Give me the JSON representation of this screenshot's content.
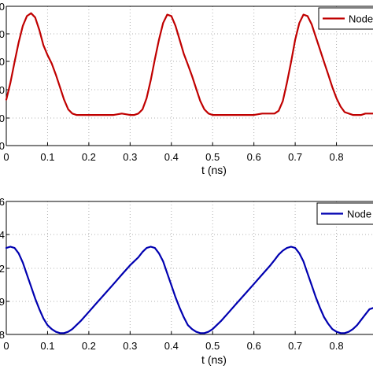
{
  "chart_data": [
    {
      "type": "line",
      "xlabel": "t (ns)",
      "ylabel": "",
      "xlim": [
        0,
        0.9
      ],
      "ylim": [
        0,
        1
      ],
      "xticks": [
        "0",
        "0.1",
        "0.2",
        "0.3",
        "0.4",
        "0.5",
        "0.6",
        "0.7",
        "0.8"
      ],
      "yticks": [
        "0",
        "0",
        "0",
        "0",
        "0",
        "0"
      ],
      "grid": true,
      "legend": "top-right",
      "series": [
        {
          "name": "Node",
          "color": "#c00000",
          "x": [
            0,
            0.01,
            0.02,
            0.03,
            0.04,
            0.05,
            0.06,
            0.07,
            0.08,
            0.09,
            0.1,
            0.11,
            0.12,
            0.13,
            0.14,
            0.15,
            0.16,
            0.17,
            0.18,
            0.19,
            0.2,
            0.22,
            0.24,
            0.26,
            0.28,
            0.3,
            0.31,
            0.32,
            0.33,
            0.34,
            0.35,
            0.36,
            0.37,
            0.38,
            0.39,
            0.4,
            0.41,
            0.42,
            0.43,
            0.44,
            0.45,
            0.46,
            0.47,
            0.48,
            0.49,
            0.5,
            0.52,
            0.54,
            0.56,
            0.58,
            0.6,
            0.62,
            0.63,
            0.64,
            0.65,
            0.66,
            0.67,
            0.68,
            0.69,
            0.7,
            0.71,
            0.72,
            0.73,
            0.74,
            0.75,
            0.76,
            0.77,
            0.78,
            0.79,
            0.8,
            0.81,
            0.82,
            0.83,
            0.84,
            0.85,
            0.86,
            0.87,
            0.88,
            0.89,
            0.9
          ],
          "values": [
            0.33,
            0.45,
            0.6,
            0.74,
            0.86,
            0.93,
            0.95,
            0.92,
            0.83,
            0.72,
            0.65,
            0.59,
            0.51,
            0.42,
            0.33,
            0.26,
            0.23,
            0.22,
            0.22,
            0.22,
            0.22,
            0.22,
            0.22,
            0.22,
            0.23,
            0.22,
            0.22,
            0.23,
            0.26,
            0.34,
            0.47,
            0.62,
            0.76,
            0.88,
            0.94,
            0.93,
            0.86,
            0.76,
            0.66,
            0.58,
            0.5,
            0.41,
            0.32,
            0.26,
            0.23,
            0.22,
            0.22,
            0.22,
            0.22,
            0.22,
            0.22,
            0.23,
            0.23,
            0.23,
            0.23,
            0.25,
            0.32,
            0.45,
            0.6,
            0.76,
            0.88,
            0.94,
            0.93,
            0.87,
            0.78,
            0.69,
            0.6,
            0.51,
            0.42,
            0.34,
            0.28,
            0.24,
            0.23,
            0.22,
            0.22,
            0.22,
            0.23,
            0.23,
            0.23,
            0.23
          ]
        }
      ]
    },
    {
      "type": "line",
      "xlabel": "t (ns)",
      "ylabel": "",
      "xlim": [
        0,
        0.9
      ],
      "ylim": [
        0,
        1
      ],
      "xticks": [
        "0",
        "0.1",
        "0.2",
        "0.3",
        "0.4",
        "0.5",
        "0.6",
        "0.7",
        "0.8"
      ],
      "yticks": [
        "6",
        "4",
        "2",
        "9",
        "8"
      ],
      "grid": true,
      "legend": "top-right",
      "series": [
        {
          "name": "Node",
          "color": "#0000b0",
          "x": [
            0,
            0.01,
            0.02,
            0.03,
            0.04,
            0.05,
            0.06,
            0.07,
            0.08,
            0.09,
            0.1,
            0.11,
            0.12,
            0.13,
            0.14,
            0.15,
            0.16,
            0.18,
            0.2,
            0.22,
            0.24,
            0.26,
            0.28,
            0.3,
            0.32,
            0.33,
            0.34,
            0.35,
            0.36,
            0.37,
            0.38,
            0.39,
            0.4,
            0.41,
            0.42,
            0.43,
            0.44,
            0.45,
            0.46,
            0.47,
            0.48,
            0.49,
            0.5,
            0.52,
            0.54,
            0.56,
            0.58,
            0.6,
            0.62,
            0.64,
            0.65,
            0.66,
            0.67,
            0.68,
            0.69,
            0.7,
            0.71,
            0.72,
            0.73,
            0.74,
            0.75,
            0.76,
            0.77,
            0.78,
            0.79,
            0.8,
            0.81,
            0.82,
            0.83,
            0.84,
            0.85,
            0.86,
            0.87,
            0.88,
            0.89,
            0.9
          ],
          "values": [
            0.65,
            0.66,
            0.65,
            0.61,
            0.54,
            0.45,
            0.36,
            0.27,
            0.19,
            0.12,
            0.07,
            0.04,
            0.02,
            0.01,
            0.01,
            0.02,
            0.04,
            0.1,
            0.17,
            0.24,
            0.31,
            0.38,
            0.45,
            0.52,
            0.58,
            0.62,
            0.65,
            0.66,
            0.65,
            0.61,
            0.55,
            0.46,
            0.37,
            0.28,
            0.2,
            0.13,
            0.07,
            0.04,
            0.02,
            0.01,
            0.01,
            0.02,
            0.04,
            0.1,
            0.17,
            0.24,
            0.31,
            0.38,
            0.45,
            0.52,
            0.56,
            0.6,
            0.63,
            0.65,
            0.66,
            0.65,
            0.61,
            0.55,
            0.46,
            0.37,
            0.28,
            0.2,
            0.13,
            0.08,
            0.04,
            0.02,
            0.01,
            0.01,
            0.02,
            0.04,
            0.07,
            0.11,
            0.15,
            0.19,
            0.2,
            0.21
          ]
        }
      ]
    }
  ]
}
